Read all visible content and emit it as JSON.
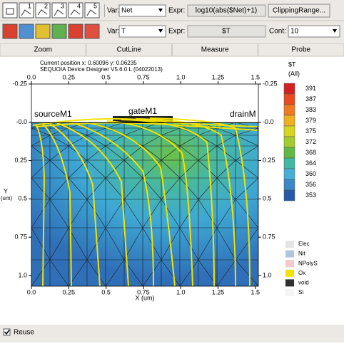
{
  "toolbar": {
    "icon_labels": [
      "1",
      "2",
      "3",
      "4",
      "5"
    ],
    "row1": {
      "var_label": "Var:",
      "var_value": "Net",
      "expr_label": "Expr:",
      "expr_value": "log10(abs($Net)+1)",
      "button": "ClippingRange..."
    },
    "row2": {
      "var_label": "Var:",
      "var_value": "T",
      "expr_label": "Expr:",
      "expr_value": "$T",
      "cont_label": "Cont:",
      "cont_value": "10"
    }
  },
  "tabs": [
    "Zoom",
    "CutLine",
    "Measure",
    "Probe"
  ],
  "status": {
    "position": "Current position x: 0.60096    y: 0.06235",
    "version": "SEQUOIA Device Designer V5.6.0 L (04022013)"
  },
  "plot": {
    "xlabel": "X (um)",
    "ylabel": "Y",
    "yunit": "(um)",
    "xlim": [
      0,
      1.52
    ],
    "ylim": [
      -0.25,
      1.07
    ],
    "xticks": [
      {
        "value": 0,
        "label": "0.0"
      },
      0.25,
      0.5,
      0.75,
      {
        "value": 1,
        "label": "1.0"
      },
      1.25,
      1.5
    ],
    "yticks": [
      -0.25,
      {
        "value": 0,
        "label": "-0.0"
      },
      0.25,
      0.5,
      0.75,
      {
        "value": 1,
        "label": "1.0"
      }
    ],
    "regions": [
      "sourceM1",
      "gateM1",
      "drainM"
    ]
  },
  "colorbar": {
    "title": "$T",
    "unit": "(All)",
    "values": [
      391,
      387,
      383,
      379,
      375,
      372,
      368,
      364,
      360,
      356,
      353
    ],
    "colors": [
      "#d42020",
      "#e84a22",
      "#f07a22",
      "#f0b022",
      "#d6d622",
      "#a4cc30",
      "#62b842",
      "#42b8a0",
      "#44b0d8",
      "#3a88c8",
      "#2a58a8"
    ]
  },
  "materials": [
    {
      "name": "Elec",
      "color": "#e4e4e4"
    },
    {
      "name": "Nit",
      "color": "#b0c4e0"
    },
    {
      "name": "NPolyS",
      "color": "#f4c8cc"
    },
    {
      "name": "Ox",
      "color": "#f2e200"
    },
    {
      "name": "void",
      "color": "#303030"
    },
    {
      "name": "Si",
      "color": "#f4f4f4"
    }
  ],
  "footer": {
    "checkbox": "Reuse"
  }
}
